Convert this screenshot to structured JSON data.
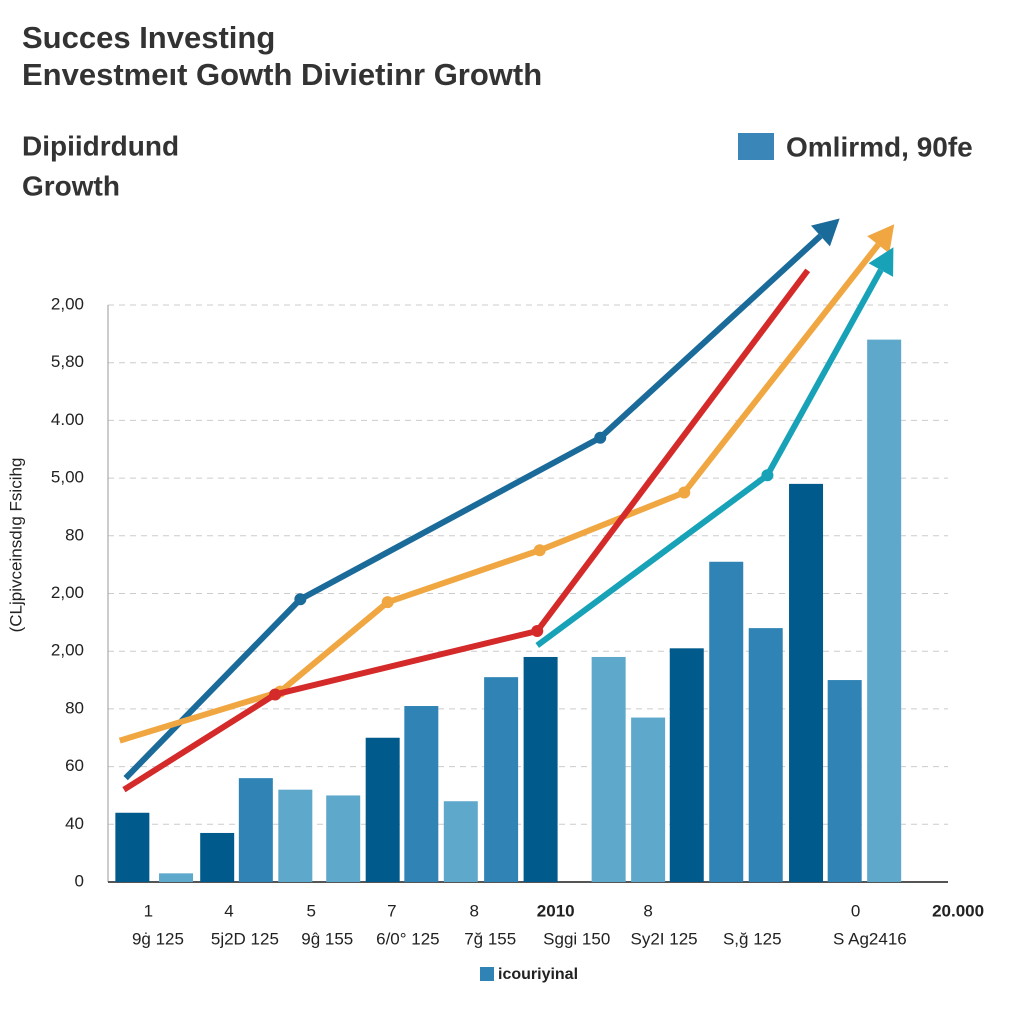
{
  "chart_data": {
    "type": "bar_line",
    "title": "Succes Investing",
    "subtitle": "Envestmeıt Gowth Divietinr Growth",
    "heading": [
      "Dipiidrdund",
      "Growth"
    ],
    "legend_label": "Omlirmd, 90fe",
    "legend_color": "#3a86b8",
    "ylabel": "(CLjpivceinsdıg Fsicihg",
    "bottom_legend_label": "icouriyinal",
    "bottom_legend_color": "#2f84b5",
    "grid": true,
    "xlim": [
      0,
      100
    ],
    "ylim": [
      0,
      10
    ],
    "yticks": [
      0,
      {
        "value": 1,
        "label": "40"
      },
      {
        "value": 2,
        "label": "60"
      },
      {
        "value": 3,
        "label": "80"
      },
      {
        "value": 4,
        "label": "2,00"
      },
      {
        "value": 5,
        "label": "2,00"
      },
      {
        "value": 6,
        "label": "80"
      },
      {
        "value": 7,
        "label": "5,00"
      },
      {
        "value": 8,
        "label": "4.00"
      },
      {
        "value": 9,
        "label": "5,80"
      },
      {
        "value": 10,
        "label": "2,00"
      }
    ],
    "xticks": [
      {
        "value": 4.8,
        "label": "1"
      },
      {
        "value": 14.4,
        "label": "4"
      },
      {
        "value": 24.2,
        "label": "5"
      },
      {
        "value": 33.8,
        "label": "7"
      },
      {
        "value": 43.6,
        "label": "8"
      },
      {
        "value": 53.3,
        "label": "2010"
      },
      {
        "value": 64.3,
        "label": "8"
      },
      {
        "value": 89,
        "label": "0"
      },
      {
        "value": 101.2,
        "label": "20.000"
      }
    ],
    "xticks2": [
      {
        "value": 5.95,
        "label": "9ġ 125"
      },
      {
        "value": 16.3,
        "label": "5j2D 125"
      },
      {
        "value": 26.1,
        "label": "9ĝ 155"
      },
      {
        "value": 35.7,
        "label": "6/0° 125"
      },
      {
        "value": 45.5,
        "label": "7ğ 155"
      },
      {
        "value": 55.8,
        "label": "Sggi 150"
      },
      {
        "value": 66.2,
        "label": "Sy2I 125"
      },
      {
        "value": 76.7,
        "label": "S,ğ 125"
      },
      {
        "value": 90.7,
        "label": "S Ag2416"
      }
    ],
    "bars": {
      "x": [
        2.9,
        8.1,
        13,
        17.6,
        22.3,
        28,
        32.7,
        37.3,
        42,
        46.8,
        51.5,
        59.6,
        64.3,
        68.9,
        73.6,
        78.3,
        83.1,
        87.7,
        92.4
      ],
      "values": [
        1.2,
        0.15,
        0.85,
        1.8,
        1.6,
        1.5,
        2.5,
        3.05,
        1.4,
        3.55,
        3.9,
        3.9,
        2.85,
        4.05,
        5.55,
        4.4,
        6.9,
        3.5,
        9.4
      ],
      "colors": [
        "#015a8c",
        "#5ea8cc",
        "#015a8c",
        "#2f84b5",
        "#5ea8cc",
        "#5ea8cc",
        "#015a8c",
        "#2f84b5",
        "#5ea8cc",
        "#2f84b5",
        "#015a8c",
        "#5ea8cc",
        "#5ea8cc",
        "#015a8c",
        "#2f84b5",
        "#2f84b5",
        "#015a8c",
        "#2f84b5",
        "#5ea8cc"
      ]
    },
    "series": [
      {
        "color": "#1b6b9a",
        "arrow": true,
        "x": [
          2.1,
          22.9,
          58.6,
          87.1
        ],
        "values": [
          1.8,
          4.9,
          7.7,
          11.5
        ]
      },
      {
        "color": "#f0a742",
        "arrow": true,
        "x": [
          1.4,
          20.5,
          33.3,
          51.4,
          68.6,
          93.6
        ],
        "values": [
          2.45,
          3.3,
          4.85,
          5.75,
          6.75,
          11.4
        ]
      },
      {
        "color": "#d42a2a",
        "arrow": false,
        "x": [
          1.9,
          19.9,
          51.1,
          83.3
        ],
        "values": [
          1.6,
          3.25,
          4.35,
          10.6
        ]
      },
      {
        "color": "#17a2b8",
        "arrow": true,
        "x": [
          51.1,
          78.5,
          93.5
        ],
        "values": [
          4.1,
          7.05,
          11.0
        ]
      }
    ]
  }
}
